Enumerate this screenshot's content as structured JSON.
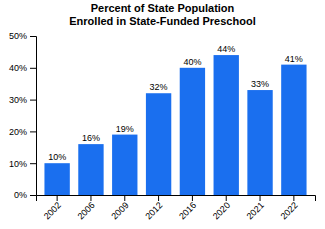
{
  "chart_data": {
    "type": "bar",
    "title": "Percent of State Population\nEnrolled in State-Funded Preschool",
    "categories": [
      "2002",
      "2006",
      "2009",
      "2012",
      "2016",
      "2020",
      "2021",
      "2022"
    ],
    "values": [
      10,
      16,
      19,
      32,
      40,
      44,
      33,
      41
    ],
    "value_labels": [
      "10%",
      "16%",
      "19%",
      "32%",
      "40%",
      "44%",
      "33%",
      "41%"
    ],
    "data_labels": true,
    "color": "#1a6fef",
    "ylim": [
      0,
      50
    ],
    "yticks": [
      {
        "value": 0,
        "label": "0%"
      },
      {
        "value": 10,
        "label": "10%"
      },
      {
        "value": 20,
        "label": "20%"
      },
      {
        "value": 30,
        "label": "30%"
      },
      {
        "value": 40,
        "label": "40%"
      },
      {
        "value": 50,
        "label": "50%"
      }
    ],
    "grid": false
  }
}
